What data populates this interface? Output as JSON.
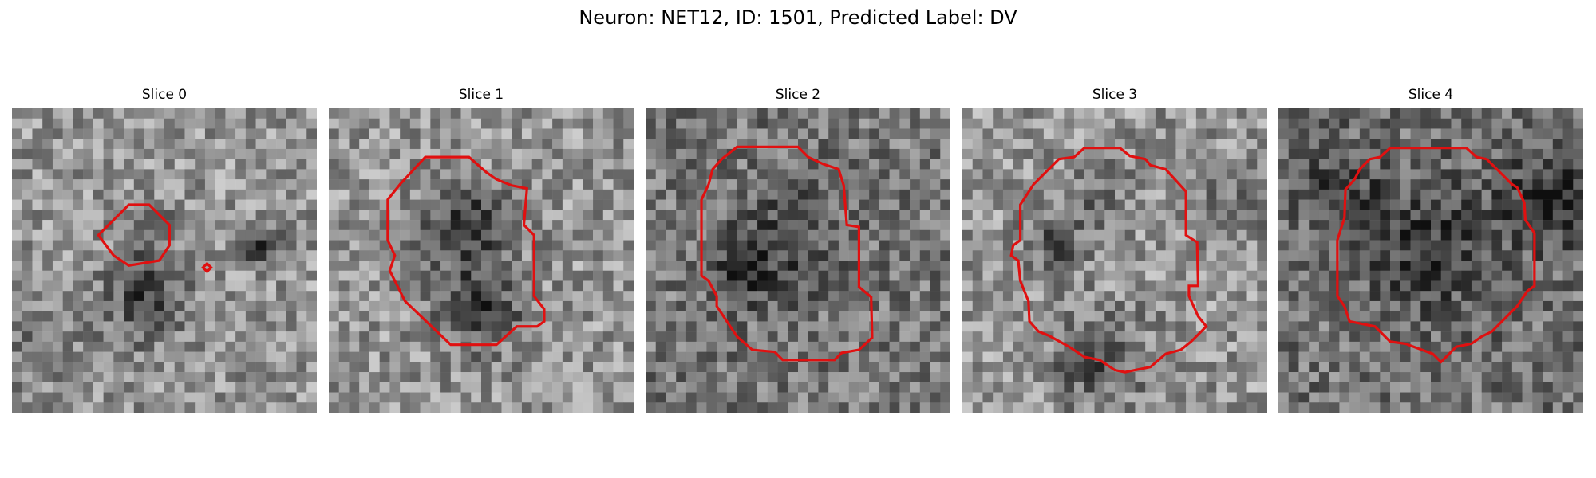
{
  "figure": {
    "title": "Neuron: NET12, ID: 1501, Predicted Label: DV",
    "outline_color": "#e01010",
    "panels": [
      {
        "title": "Slice 0",
        "seed": 11,
        "bright": 150,
        "dark": [
          [
            0.45,
            0.4,
            0.08,
            -60
          ],
          [
            0.45,
            0.63,
            0.13,
            -90
          ],
          [
            0.8,
            0.44,
            0.07,
            -80
          ],
          [
            0.1,
            0.75,
            0.2,
            -30
          ]
        ]
      },
      {
        "title": "Slice 1",
        "seed": 23,
        "bright": 150,
        "dark": [
          [
            0.45,
            0.38,
            0.12,
            -80
          ],
          [
            0.5,
            0.67,
            0.12,
            -90
          ],
          [
            0.45,
            0.5,
            0.2,
            -30
          ]
        ]
      },
      {
        "title": "Slice 2",
        "seed": 37,
        "bright": 120,
        "dark": [
          [
            0.45,
            0.45,
            0.2,
            -50
          ],
          [
            0.3,
            0.55,
            0.1,
            -40
          ]
        ]
      },
      {
        "title": "Slice 3",
        "seed": 41,
        "bright": 150,
        "dark": [
          [
            0.45,
            0.28,
            0.12,
            -40
          ],
          [
            0.3,
            0.45,
            0.1,
            -60
          ],
          [
            0.45,
            0.82,
            0.15,
            -70
          ],
          [
            0.9,
            0.3,
            0.12,
            -40
          ]
        ]
      },
      {
        "title": "Slice 4",
        "seed": 53,
        "bright": 115,
        "dark": [
          [
            0.5,
            0.45,
            0.22,
            -60
          ],
          [
            0.9,
            0.3,
            0.15,
            -80
          ],
          [
            0.2,
            0.25,
            0.15,
            -40
          ]
        ]
      }
    ]
  }
}
